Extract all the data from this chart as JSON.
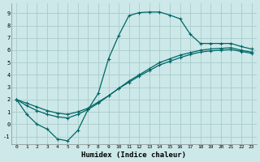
{
  "xlabel": "Humidex (Indice chaleur)",
  "background_color": "#cce8e8",
  "grid_color": "#aacccc",
  "line_color": "#006666",
  "xlim": [
    -0.5,
    23.5
  ],
  "ylim": [
    -1.6,
    9.8
  ],
  "xticks": [
    0,
    1,
    2,
    3,
    4,
    5,
    6,
    7,
    8,
    9,
    10,
    11,
    12,
    13,
    14,
    15,
    16,
    17,
    18,
    19,
    20,
    21,
    22,
    23
  ],
  "yticks": [
    -1,
    0,
    1,
    2,
    3,
    4,
    5,
    6,
    7,
    8,
    9
  ],
  "line1_x": [
    0,
    1,
    2,
    3,
    4,
    5,
    6,
    7,
    8,
    9,
    10,
    11,
    12,
    13,
    14,
    15,
    16,
    17,
    18,
    19,
    20,
    21,
    22,
    23
  ],
  "line1_y": [
    2.0,
    0.8,
    0.0,
    -0.4,
    -1.2,
    -1.35,
    -0.5,
    1.2,
    2.5,
    5.3,
    7.2,
    8.8,
    9.05,
    9.1,
    9.1,
    8.85,
    8.55,
    7.3,
    6.55,
    6.55,
    6.55,
    6.55,
    6.3,
    6.1
  ],
  "line2_x": [
    0,
    1,
    2,
    3,
    4,
    5,
    6,
    7,
    8,
    9,
    10,
    11,
    12,
    13,
    14,
    15,
    16,
    17,
    18,
    19,
    20,
    21,
    22,
    23
  ],
  "line2_y": [
    2.0,
    1.5,
    1.1,
    0.8,
    0.6,
    0.5,
    0.8,
    1.2,
    1.7,
    2.3,
    2.9,
    3.5,
    4.0,
    4.5,
    5.0,
    5.3,
    5.6,
    5.8,
    6.0,
    6.1,
    6.15,
    6.2,
    6.0,
    5.85
  ],
  "line3_x": [
    0,
    1,
    2,
    3,
    4,
    5,
    6,
    7,
    8,
    9,
    10,
    11,
    12,
    13,
    14,
    15,
    16,
    17,
    18,
    19,
    20,
    21,
    22,
    23
  ],
  "line3_y": [
    2.0,
    1.7,
    1.4,
    1.1,
    0.9,
    0.8,
    1.0,
    1.3,
    1.8,
    2.3,
    2.9,
    3.4,
    3.9,
    4.35,
    4.8,
    5.1,
    5.4,
    5.65,
    5.85,
    5.95,
    6.0,
    6.05,
    5.9,
    5.75
  ]
}
